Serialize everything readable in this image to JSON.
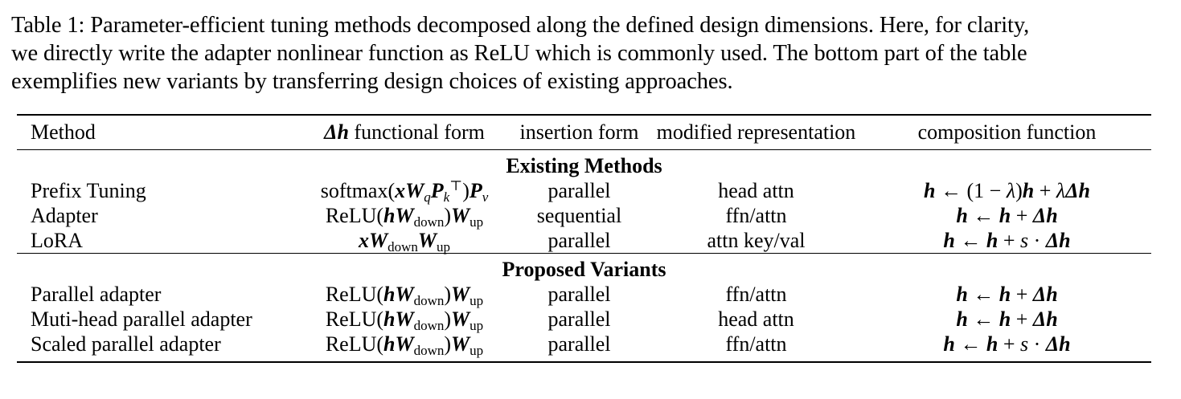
{
  "caption": {
    "lines": [
      "Table 1: Parameter-efficient tuning methods decomposed along the defined design dimensions. Here, for clarity,",
      "we directly write the adapter nonlinear function as ReLU which is commonly used. The bottom part of the table",
      "exemplifies new variants by transferring design choices of existing approaches."
    ]
  },
  "table": {
    "headers": {
      "method": "Method",
      "form_symbol": "Δh",
      "form_text": " functional form",
      "insertion": "insertion form",
      "modified": "modified representation",
      "composition": "composition function"
    },
    "sections": [
      {
        "title": "Existing Methods",
        "rows": [
          {
            "method": "Prefix Tuning",
            "form": "softmax(xW_q P_k^⊤)P_v",
            "insertion": "parallel",
            "modified": "head attn",
            "composition": "h ← (1 − λ)h + λΔh"
          },
          {
            "method": "Adapter",
            "form": "ReLU(hW_down)W_up",
            "insertion": "sequential",
            "modified": "ffn/attn",
            "composition": "h ← h + Δh"
          },
          {
            "method": "LoRA",
            "form": "xW_down W_up",
            "insertion": "parallel",
            "modified": "attn key/val",
            "composition": "h ← h + s · Δh"
          }
        ]
      },
      {
        "title": "Proposed Variants",
        "rows": [
          {
            "method": "Parallel adapter",
            "form": "ReLU(hW_down)W_up",
            "insertion": "parallel",
            "modified": "ffn/attn",
            "composition": "h ← h + Δh"
          },
          {
            "method": "Muti-head parallel adapter",
            "form": "ReLU(hW_down)W_up",
            "insertion": "parallel",
            "modified": "head attn",
            "composition": "h ← h + Δh"
          },
          {
            "method": "Scaled parallel adapter",
            "form": "ReLU(hW_down)W_up",
            "insertion": "parallel",
            "modified": "ffn/attn",
            "composition": "h ← h + s · Δh"
          }
        ]
      }
    ]
  }
}
